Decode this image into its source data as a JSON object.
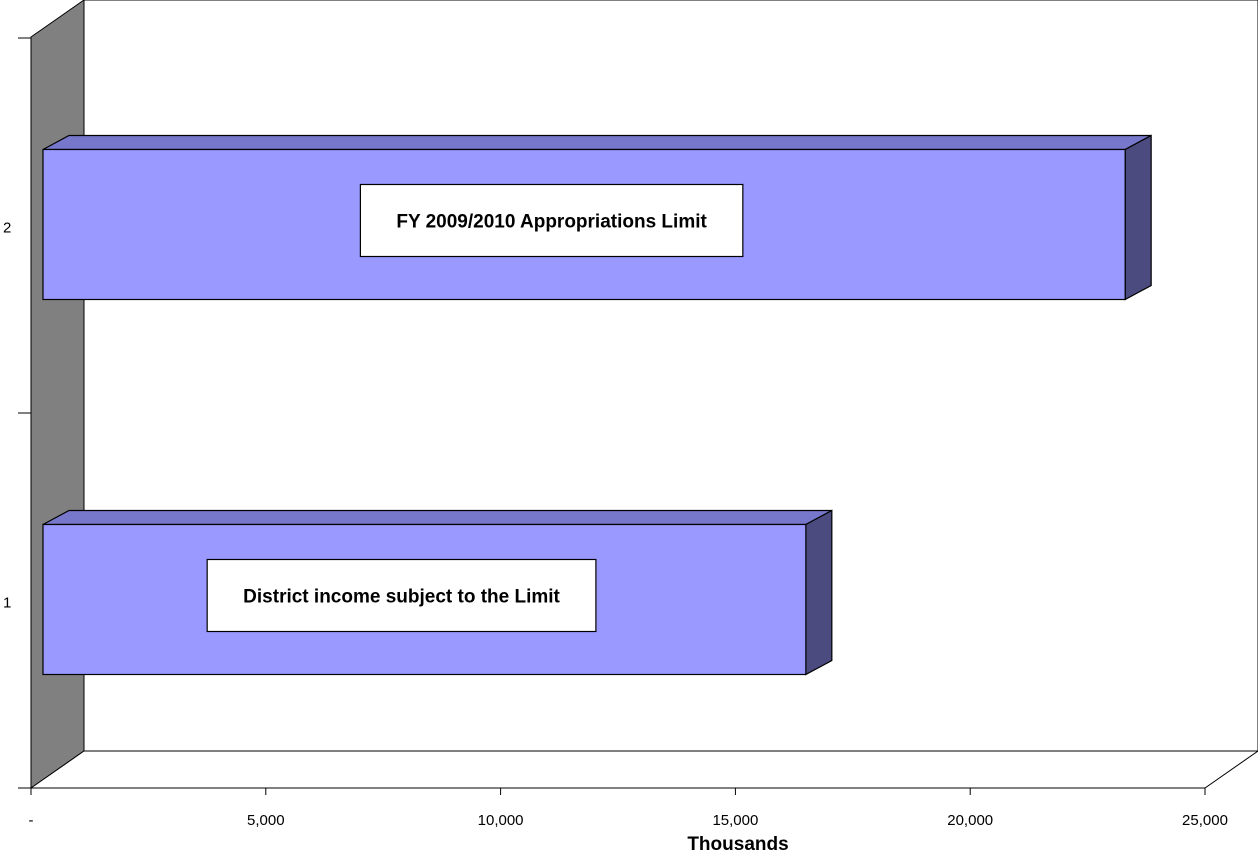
{
  "chart_data": {
    "type": "bar",
    "orientation": "horizontal",
    "three_d": true,
    "categories": [
      "1",
      "2"
    ],
    "series": [
      {
        "values": [
          16500,
          23300
        ],
        "point_labels": [
          "District income subject to the Limit",
          "FY 2009/2010 Appropriations Limit"
        ]
      }
    ],
    "xlabel": "Thousands",
    "ylabel": "",
    "xlim": [
      0,
      25000
    ],
    "x_ticks": [
      0,
      5000,
      10000,
      15000,
      20000,
      25000
    ],
    "x_tick_labels": [
      "-",
      "5,000",
      "10,000",
      "15,000",
      "20,000",
      "25,000"
    ],
    "grid": false,
    "legend": "none",
    "colors": {
      "bar_front": "#9999ff",
      "bar_top": "#7777cc",
      "bar_side": "#4b4b80",
      "wall": "#808080",
      "outline": "#000000",
      "label_box": "#ffffff"
    }
  }
}
